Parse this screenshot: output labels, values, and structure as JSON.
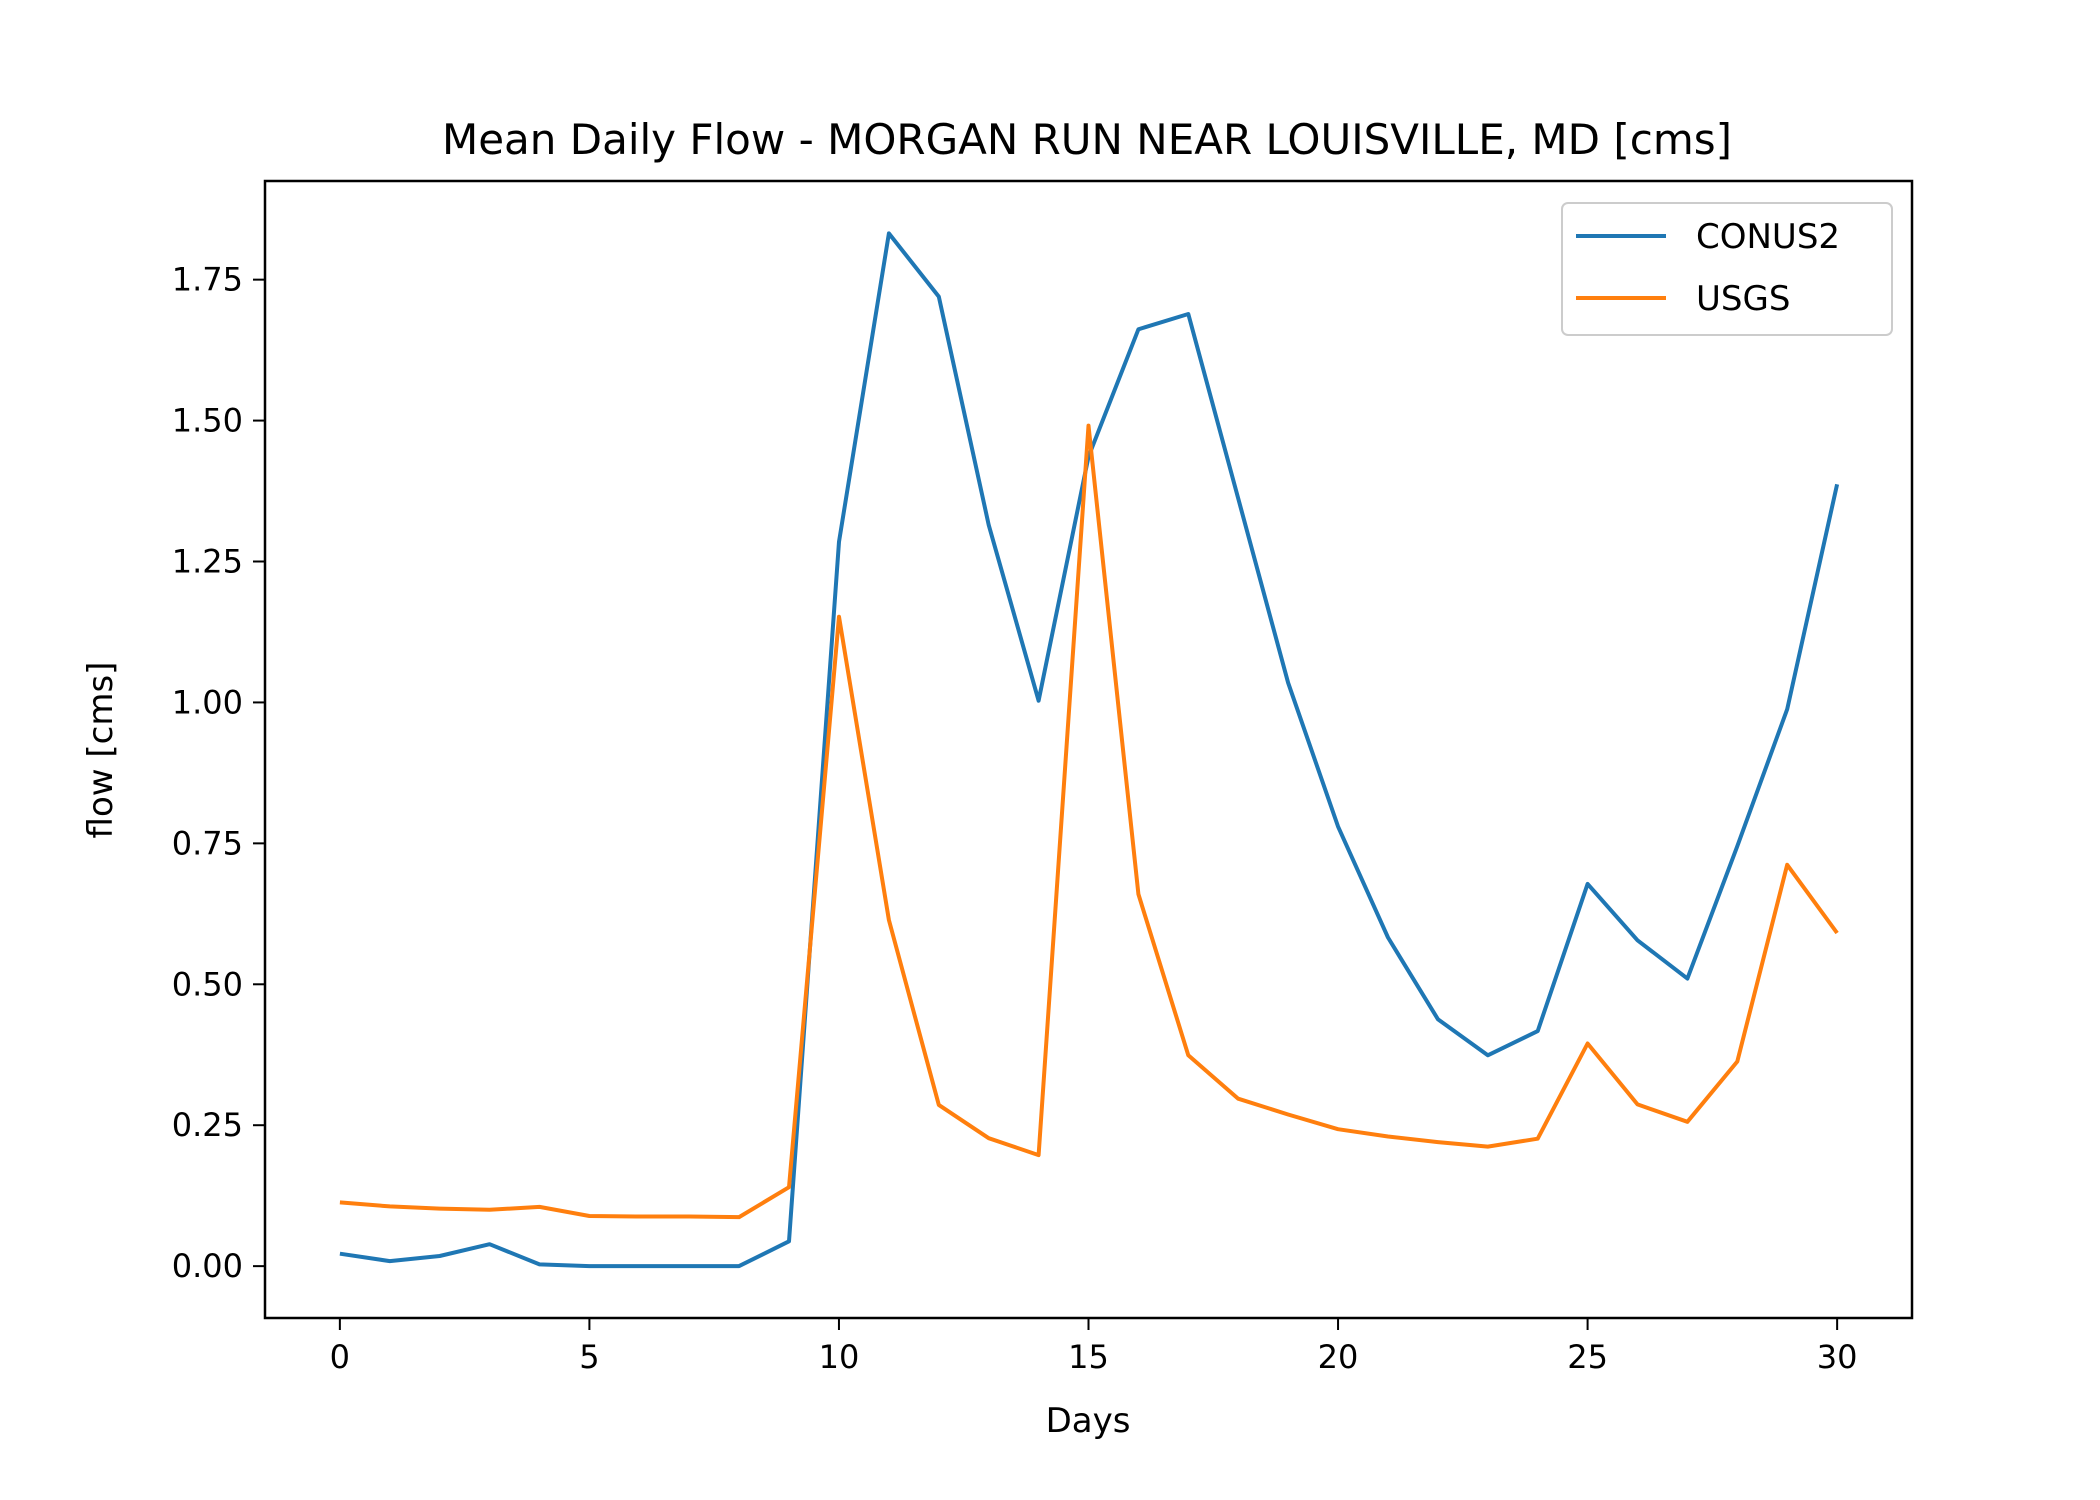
{
  "chart_data": {
    "type": "line",
    "title": "Mean Daily Flow - MORGAN RUN NEAR LOUISVILLE, MD [cms]",
    "xlabel": "Days",
    "ylabel": "flow [cms]",
    "xlim": [
      -1.5,
      31.5
    ],
    "ylim": [
      -0.092,
      1.925
    ],
    "x_ticks": [
      0,
      5,
      10,
      15,
      20,
      25,
      30
    ],
    "y_ticks": [
      0.0,
      0.25,
      0.5,
      0.75,
      1.0,
      1.25,
      1.5,
      1.75
    ],
    "y_tick_labels": [
      "0.00",
      "0.25",
      "0.50",
      "0.75",
      "1.00",
      "1.25",
      "1.50",
      "1.75"
    ],
    "grid": false,
    "legend_position": "upper right",
    "x": [
      0,
      1,
      2,
      3,
      4,
      5,
      6,
      7,
      8,
      9,
      10,
      11,
      12,
      13,
      14,
      15,
      16,
      17,
      18,
      19,
      20,
      21,
      22,
      23,
      24,
      25,
      26,
      27,
      28,
      29,
      30
    ],
    "series": [
      {
        "name": "CONUS2",
        "color": "#1f77b4",
        "values": [
          0.022,
          0.009,
          0.018,
          0.039,
          0.003,
          0.0,
          0.0,
          0.0,
          0.0,
          0.044,
          1.285,
          1.832,
          1.72,
          1.315,
          1.003,
          1.436,
          1.662,
          1.689,
          1.362,
          1.035,
          0.78,
          0.583,
          0.438,
          0.374,
          0.417,
          0.678,
          0.578,
          0.51,
          0.745,
          0.988,
          1.387
        ]
      },
      {
        "name": "USGS",
        "color": "#ff7f0e",
        "values": [
          0.113,
          0.106,
          0.102,
          0.1,
          0.105,
          0.089,
          0.088,
          0.088,
          0.087,
          0.14,
          1.152,
          0.614,
          0.286,
          0.227,
          0.197,
          1.491,
          0.66,
          0.374,
          0.297,
          0.269,
          0.243,
          0.23,
          0.22,
          0.212,
          0.226,
          0.395,
          0.287,
          0.256,
          0.363,
          0.712,
          0.591
        ]
      }
    ]
  }
}
